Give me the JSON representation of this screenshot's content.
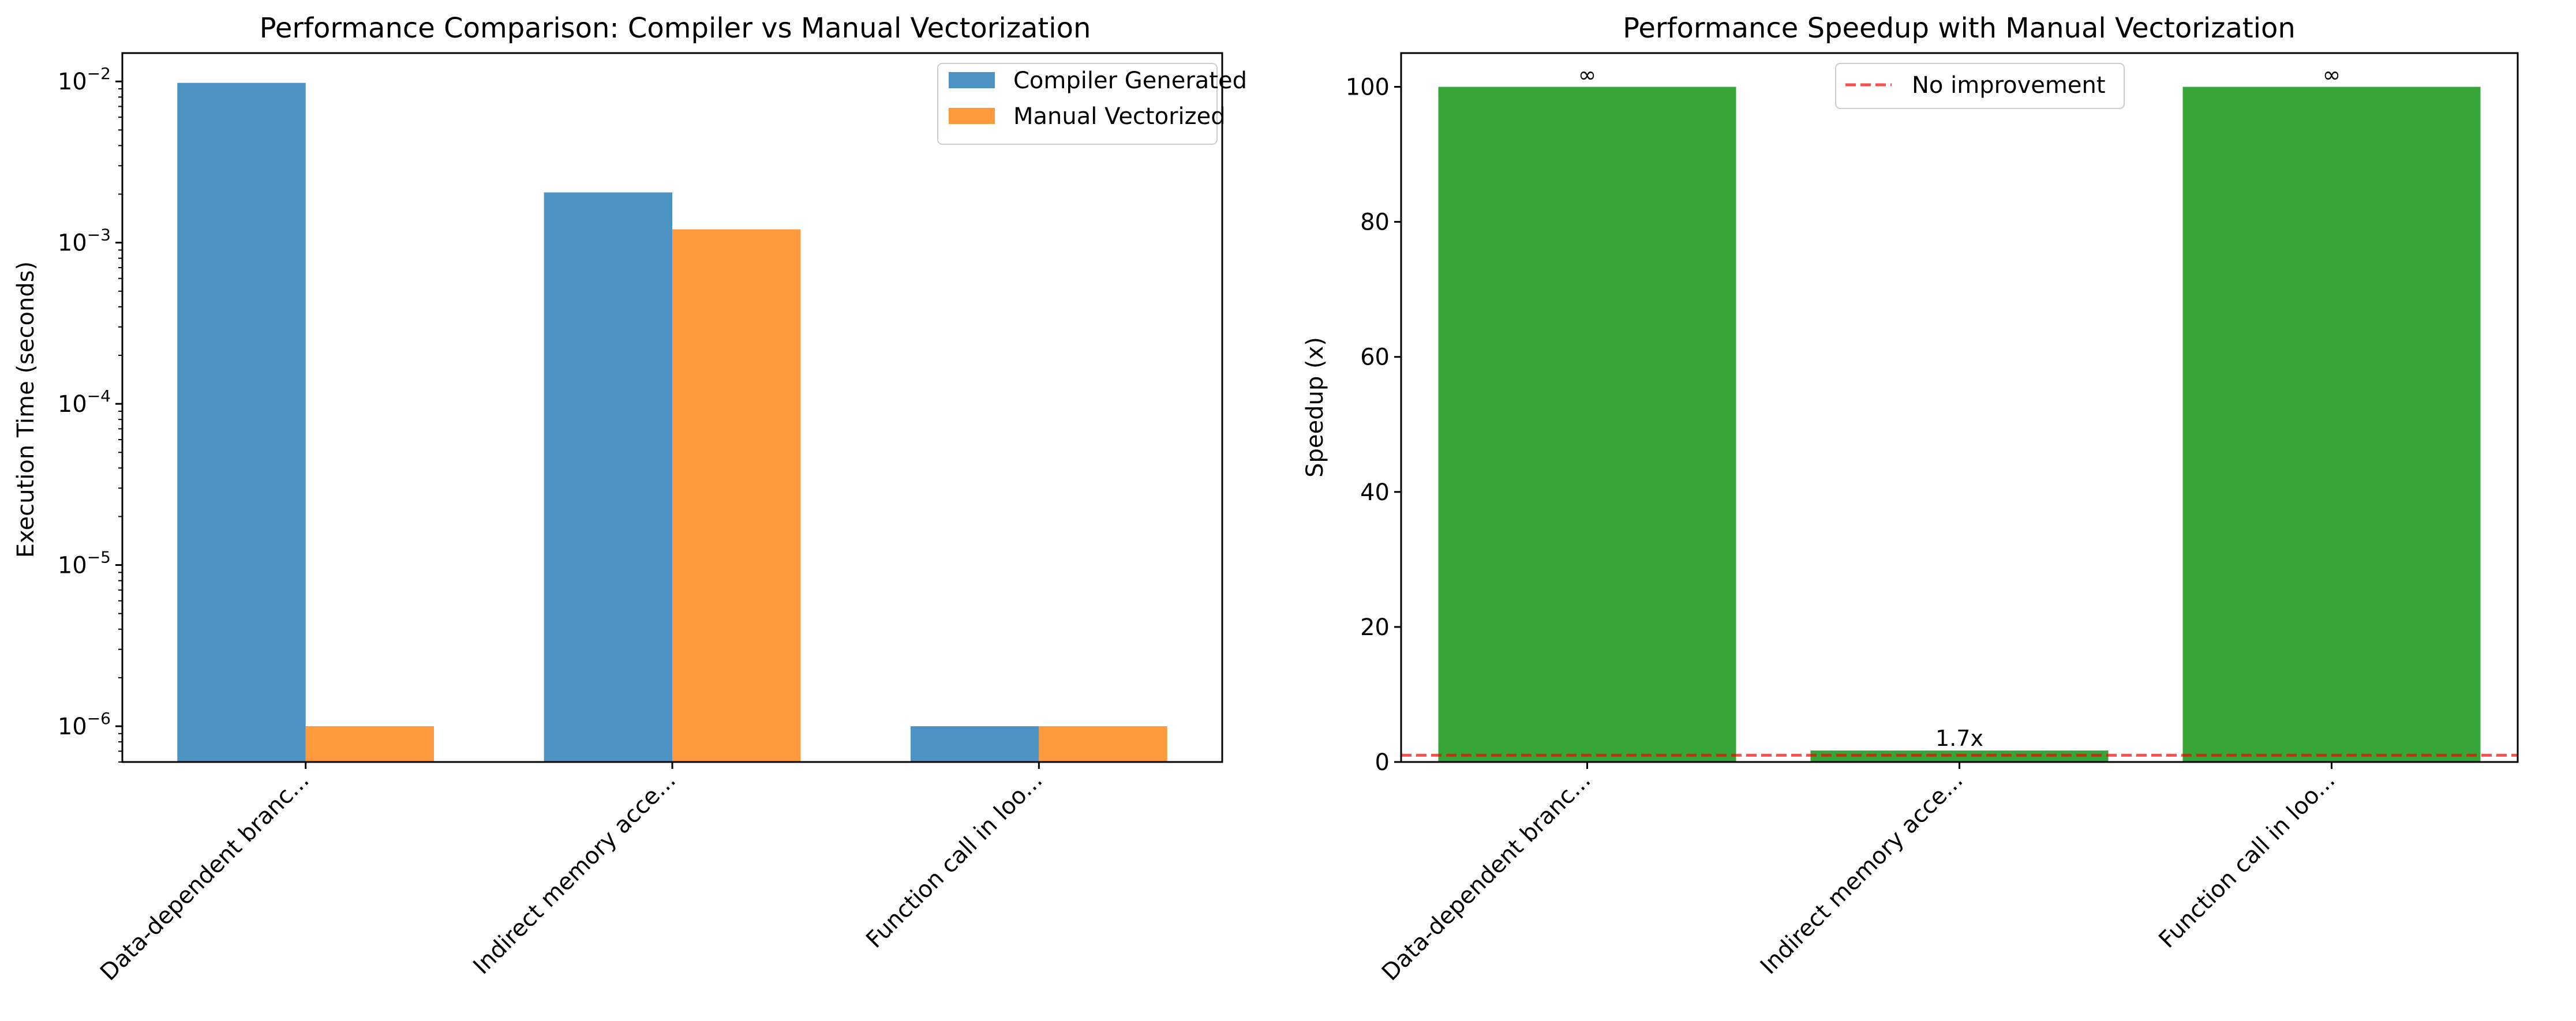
{
  "chart_data": [
    {
      "type": "bar",
      "title": "Performance Comparison: Compiler vs Manual Vectorization",
      "xlabel": "",
      "ylabel": "Execution Time (seconds)",
      "yscale": "log",
      "ylim": [
        6e-07,
        0.015
      ],
      "yticks": [
        {
          "value": 1e-06,
          "base": "10",
          "exp": "−6"
        },
        {
          "value": 1e-05,
          "base": "10",
          "exp": "−5"
        },
        {
          "value": 0.0001,
          "base": "10",
          "exp": "−4"
        },
        {
          "value": 0.001,
          "base": "10",
          "exp": "−3"
        },
        {
          "value": 0.01,
          "base": "10",
          "exp": "−2"
        }
      ],
      "categories": [
        "Data-dependent branc...",
        "Indirect memory acce...",
        "Function call in loo..."
      ],
      "series": [
        {
          "name": "Compiler Generated",
          "color": "#1f77b4",
          "values": [
            0.0098,
            0.00205,
            1e-06
          ]
        },
        {
          "name": "Manual Vectorized",
          "color": "#ff7f0e",
          "values": [
            1e-06,
            0.00121,
            1e-06
          ]
        }
      ],
      "legend_position": "top-right",
      "grid": false
    },
    {
      "type": "bar",
      "title": "Performance Speedup with Manual Vectorization",
      "xlabel": "",
      "ylabel": "Speedup (x)",
      "ylim": [
        0,
        105
      ],
      "yticks": [
        0,
        20,
        40,
        60,
        80,
        100
      ],
      "categories": [
        "Data-dependent branc...",
        "Indirect memory acce...",
        "Function call in loo..."
      ],
      "series": [
        {
          "name": "",
          "color": "#2ca02c",
          "values": [
            100,
            1.7,
            100
          ]
        }
      ],
      "data_labels": [
        "∞",
        "1.7x",
        "∞"
      ],
      "reference_line": {
        "value": 1,
        "label": "No improvement",
        "color": "#ff0000",
        "style": "dashed"
      },
      "legend_position": "top-center",
      "grid": false
    }
  ]
}
